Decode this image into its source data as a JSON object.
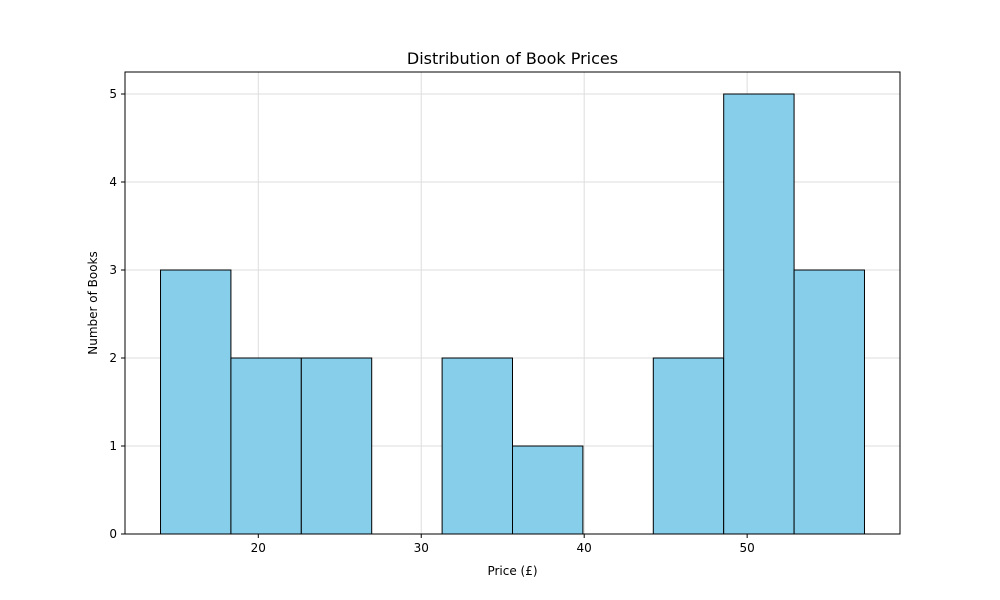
{
  "chart_data": {
    "type": "bar",
    "title": "Distribution of Book Prices",
    "xlabel": "Price (£)",
    "ylabel": "Number of Books",
    "xlim": [
      11.82,
      59.38
    ],
    "ylim": [
      0,
      5.25
    ],
    "xticks": [
      20,
      30,
      40,
      50
    ],
    "yticks": [
      0,
      1,
      2,
      3,
      4,
      5
    ],
    "grid": true,
    "bins": [
      {
        "x_start": 14.0,
        "x_end": 18.32,
        "count": 3
      },
      {
        "x_start": 18.32,
        "x_end": 22.64,
        "count": 2
      },
      {
        "x_start": 22.64,
        "x_end": 26.96,
        "count": 2
      },
      {
        "x_start": 26.96,
        "x_end": 31.28,
        "count": 0
      },
      {
        "x_start": 31.28,
        "x_end": 35.6,
        "count": 2
      },
      {
        "x_start": 35.6,
        "x_end": 39.92,
        "count": 1
      },
      {
        "x_start": 39.92,
        "x_end": 44.24,
        "count": 0
      },
      {
        "x_start": 44.24,
        "x_end": 48.56,
        "count": 2
      },
      {
        "x_start": 48.56,
        "x_end": 52.88,
        "count": 5
      },
      {
        "x_start": 52.88,
        "x_end": 57.2,
        "count": 3
      }
    ],
    "bar_color": "#87CEEB",
    "edge_color": "#000000",
    "grid_color": "#dddddd"
  }
}
